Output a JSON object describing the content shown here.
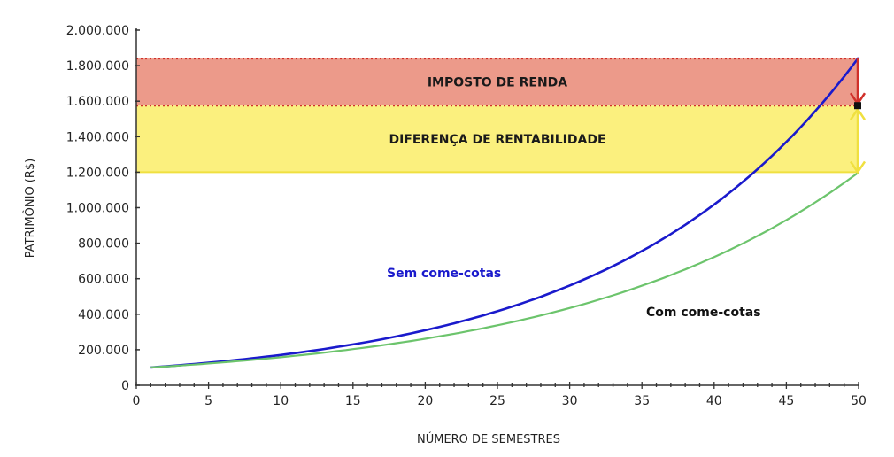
{
  "chart_data": {
    "type": "line",
    "title": "",
    "xlabel": "NÚMERO DE SEMESTRES",
    "ylabel": "PATRIMÔNIO (R$)",
    "xlim": [
      0,
      50
    ],
    "ylim": [
      0,
      2000000
    ],
    "x_ticks": [
      0,
      5,
      10,
      15,
      20,
      25,
      30,
      35,
      40,
      45,
      50
    ],
    "x_minor_step": 1,
    "y_ticks": [
      0,
      200000,
      400000,
      600000,
      800000,
      1000000,
      1200000,
      1400000,
      1600000,
      1800000,
      2000000
    ],
    "y_tick_labels": [
      "0",
      "200.000",
      "400.000",
      "600.000",
      "800.000",
      "1.000.000",
      "1.200.000",
      "1.400.000",
      "1.600.000",
      "1.800.000",
      "2.000.000"
    ],
    "grid": false,
    "legend": "inline labels",
    "x": [
      1,
      5,
      10,
      15,
      20,
      25,
      30,
      35,
      40,
      45,
      50
    ],
    "series": [
      {
        "name": "Sem come-cotas",
        "color": "#1a1acc",
        "start_value": 100000,
        "growth_per_period": 0.0613,
        "values": [
          100000,
          126900,
          170800,
          230000,
          309600,
          416800,
          561100,
          755400,
          1016900,
          1369000,
          1840000
        ]
      },
      {
        "name": "Com come-cotas",
        "color": "#6cc46c",
        "start_value": 100000,
        "growth_per_period": 0.052,
        "values": [
          100000,
          122500,
          157800,
          203200,
          261700,
          337000,
          434000,
          559000,
          719800,
          927000,
          1200000
        ]
      }
    ],
    "bands": [
      {
        "name": "IMPOSTO DE RENDA",
        "from": 1575000,
        "to": 1840000,
        "color": "#ec9a8a",
        "border_color": "#d0302a"
      },
      {
        "name": "DIFERENÇA DE RENTABILIDADE",
        "from": 1200000,
        "to": 1575000,
        "color": "#fbf07e",
        "border_color": "#f0e040"
      }
    ],
    "annotations": [
      {
        "type": "arrow",
        "x": 50,
        "from": 1840000,
        "to": 1575000,
        "color": "#d0302a",
        "meaning": "imposto de renda"
      },
      {
        "type": "double-arrow",
        "x": 50,
        "from": 1200000,
        "to": 1575000,
        "color": "#f0e040",
        "meaning": "diferença de rentabilidade"
      }
    ]
  },
  "labels": {
    "band_ir": "IMPOSTO DE RENDA",
    "band_diff": "DIFERENÇA DE RENTABILIDADE",
    "series_sem": "Sem come-cotas",
    "series_com": "Com come-cotas",
    "xlabel": "NÚMERO DE SEMESTRES",
    "ylabel": "PATRIMÔNIO (R$)"
  }
}
